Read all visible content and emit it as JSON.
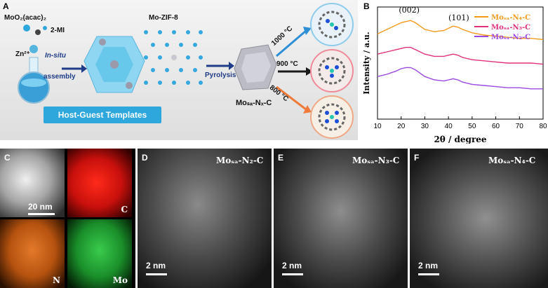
{
  "panelA": {
    "letter": "A",
    "precursor1": "MoO₂(acac)₂",
    "precursor2": "2-MI",
    "zinc": "Zn²⁺",
    "step1_line1": "In-situ",
    "step1_line2": "assembly",
    "framework": "Mo-ZIF-8",
    "step2": "Pyrolysis",
    "product": "Moₛₐ-Nₓ-C",
    "temp1": "1000 °C",
    "temp2": "900 °C",
    "temp3": "800 °C",
    "banner": "Host-Guest Templates"
  },
  "panelB": {
    "letter": "B",
    "peak1": "(002)",
    "peak2": "(101)"
  },
  "chart_data": {
    "type": "line",
    "xlabel": "2θ / degree",
    "ylabel": "Intensity / a.u.",
    "xlim": [
      10,
      80
    ],
    "xticks": [
      "10",
      "20",
      "30",
      "40",
      "50",
      "60",
      "70",
      "80"
    ],
    "legend_position": "top-right",
    "series": [
      {
        "name": "Moₛₐ-N₄-C",
        "color": "#f39a1e",
        "x": [
          10,
          14,
          18,
          20,
          22,
          24,
          26,
          28,
          30,
          34,
          38,
          40,
          42,
          44,
          46,
          50,
          55,
          60,
          65,
          70,
          75,
          80
        ],
        "y": [
          0.76,
          0.8,
          0.84,
          0.86,
          0.87,
          0.88,
          0.86,
          0.83,
          0.8,
          0.78,
          0.79,
          0.81,
          0.83,
          0.82,
          0.8,
          0.77,
          0.75,
          0.74,
          0.73,
          0.72,
          0.72,
          0.71
        ]
      },
      {
        "name": "Moₛₐ-N₃-C",
        "color": "#e0307c",
        "x": [
          10,
          14,
          18,
          20,
          22,
          24,
          26,
          28,
          30,
          34,
          38,
          40,
          42,
          44,
          46,
          50,
          55,
          60,
          65,
          70,
          75,
          80
        ],
        "y": [
          0.58,
          0.6,
          0.62,
          0.63,
          0.64,
          0.64,
          0.62,
          0.6,
          0.58,
          0.56,
          0.56,
          0.57,
          0.58,
          0.57,
          0.55,
          0.53,
          0.52,
          0.51,
          0.5,
          0.5,
          0.5,
          0.49
        ]
      },
      {
        "name": "Moₛₐ-N₂-C",
        "color": "#9b48e0",
        "x": [
          10,
          14,
          18,
          20,
          22,
          24,
          26,
          28,
          30,
          34,
          38,
          40,
          42,
          44,
          46,
          50,
          55,
          60,
          65,
          70,
          75,
          80
        ],
        "y": [
          0.38,
          0.4,
          0.43,
          0.45,
          0.46,
          0.46,
          0.44,
          0.41,
          0.38,
          0.35,
          0.34,
          0.35,
          0.36,
          0.35,
          0.33,
          0.31,
          0.3,
          0.29,
          0.28,
          0.28,
          0.27,
          0.27
        ]
      }
    ]
  },
  "panelC": {
    "letter": "C",
    "scale": "20 nm",
    "maps": [
      "C",
      "N",
      "Mo"
    ]
  },
  "panelD": {
    "letter": "D",
    "title": "Moₛₐ-N₂-C",
    "scale": "2 nm"
  },
  "panelE": {
    "letter": "E",
    "title": "Moₛₐ-N₃-C",
    "scale": "2 nm"
  },
  "panelF": {
    "letter": "F",
    "title": "Moₛₐ-N₄-C",
    "scale": "2 nm"
  },
  "colors": {
    "accent_blue": "#2ea7dc",
    "map_C": "#e01010",
    "map_N": "#d9661a",
    "map_Mo": "#1fa83a"
  }
}
